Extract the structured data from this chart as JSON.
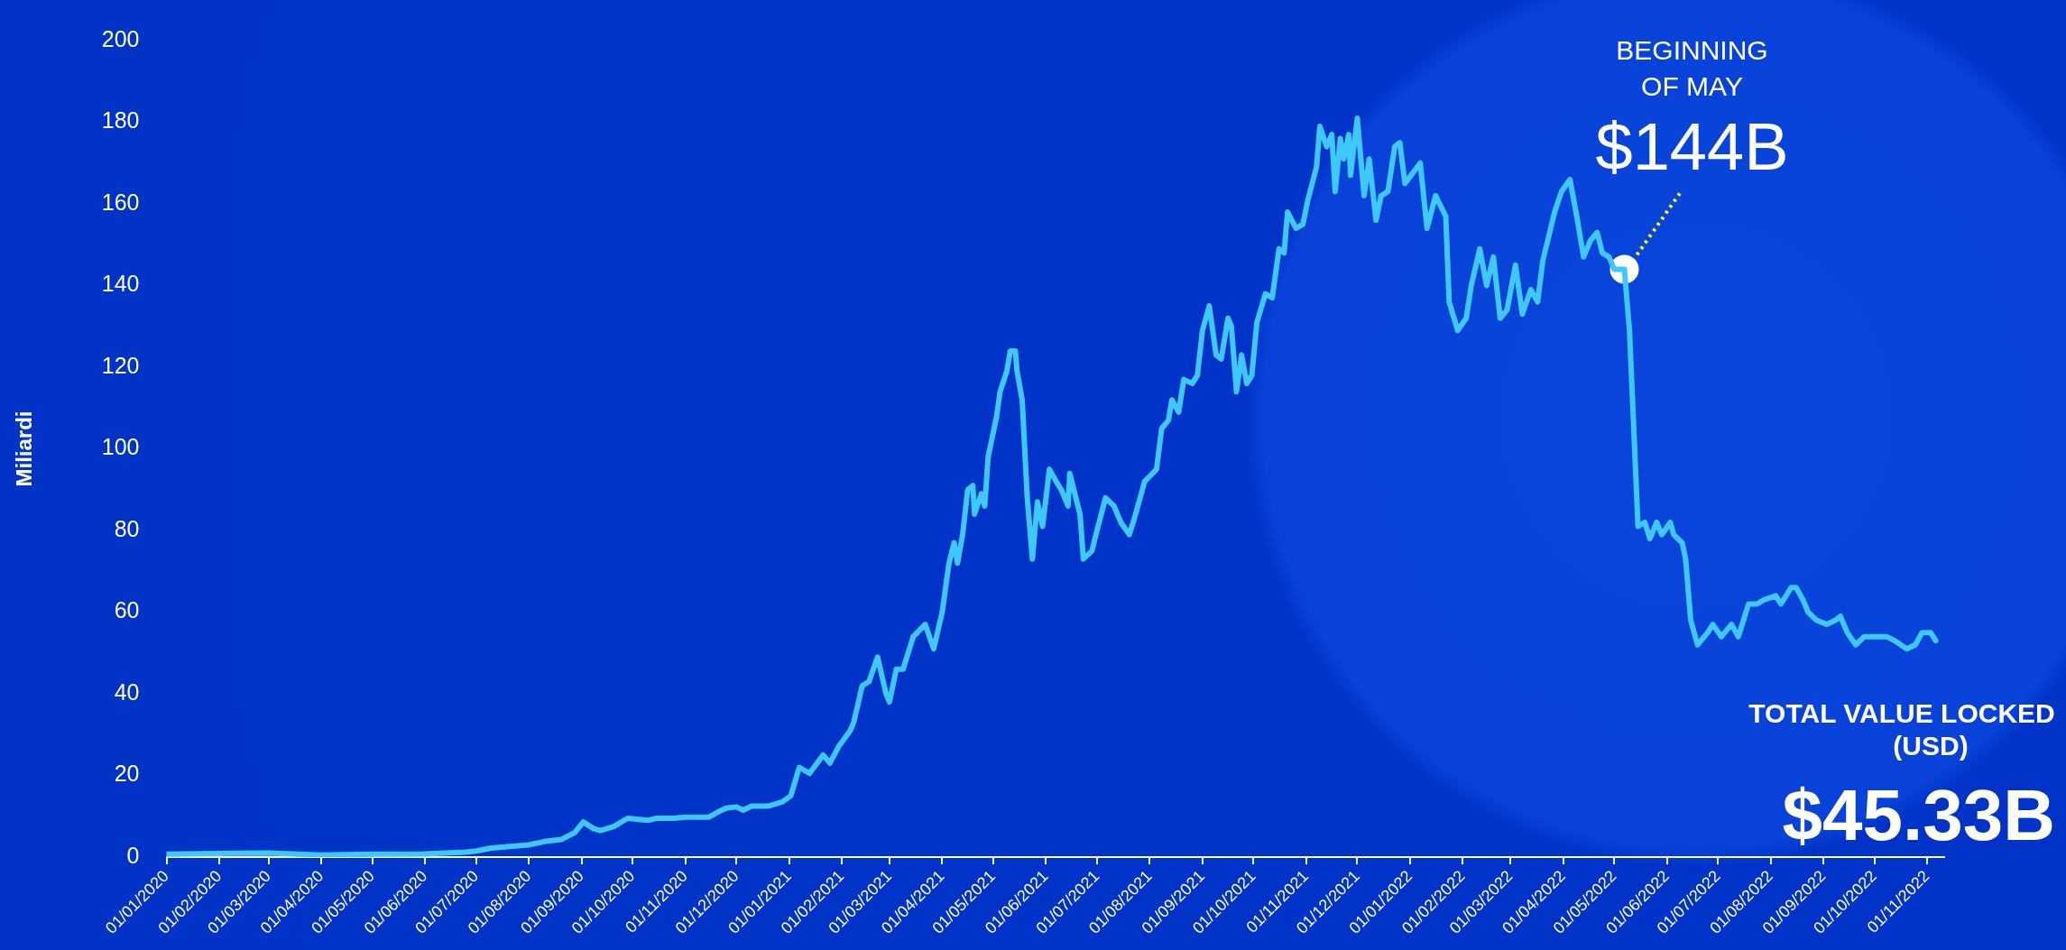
{
  "chart_data": {
    "type": "line",
    "ylabel": "Miliardi",
    "color": "#3ec8ff",
    "grid": false,
    "legend": false,
    "marker": "none",
    "line_style": "solid",
    "x": [
      "2020-01-01",
      "2020-02-01",
      "2020-03-01",
      "2020-03-15",
      "2020-04-01",
      "2020-05-01",
      "2020-06-01",
      "2020-06-25",
      "2020-07-01",
      "2020-07-10",
      "2020-08-01",
      "2020-08-10",
      "2020-08-20",
      "2020-08-28",
      "2020-09-02",
      "2020-09-08",
      "2020-09-12",
      "2020-09-20",
      "2020-09-28",
      "2020-10-10",
      "2020-10-15",
      "2020-10-25",
      "2020-11-01",
      "2020-11-15",
      "2020-11-20",
      "2020-11-25",
      "2020-12-01",
      "2020-12-05",
      "2020-12-10",
      "2020-12-20",
      "2020-12-28",
      "2021-01-02",
      "2021-01-07",
      "2021-01-13",
      "2021-01-21",
      "2021-01-25",
      "2021-01-30",
      "2021-02-06",
      "2021-02-08",
      "2021-02-13",
      "2021-02-17",
      "2021-02-22",
      "2021-02-27",
      "2021-03-01",
      "2021-03-05",
      "2021-03-09",
      "2021-03-15",
      "2021-03-22",
      "2021-03-27",
      "2021-04-01",
      "2021-04-05",
      "2021-04-08",
      "2021-04-10",
      "2021-04-13",
      "2021-04-16",
      "2021-04-19",
      "2021-04-20",
      "2021-04-24",
      "2021-04-26",
      "2021-04-28",
      "2021-05-03",
      "2021-05-05",
      "2021-05-09",
      "2021-05-11",
      "2021-05-14",
      "2021-05-15",
      "2021-05-18",
      "2021-05-21",
      "2021-05-24",
      "2021-05-27",
      "2021-05-30",
      "2021-06-03",
      "2021-06-07",
      "2021-06-10",
      "2021-06-14",
      "2021-06-15",
      "2021-06-21",
      "2021-06-23",
      "2021-06-28",
      "2021-07-01",
      "2021-07-06",
      "2021-07-11",
      "2021-07-15",
      "2021-07-20",
      "2021-07-23",
      "2021-07-29",
      "2021-08-05",
      "2021-08-08",
      "2021-08-12",
      "2021-08-14",
      "2021-08-18",
      "2021-08-21",
      "2021-08-26",
      "2021-08-29",
      "2021-09-01",
      "2021-09-05",
      "2021-09-09",
      "2021-09-12",
      "2021-09-16",
      "2021-09-18",
      "2021-09-21",
      "2021-09-24",
      "2021-09-27",
      "2021-09-30",
      "2021-10-03",
      "2021-10-08",
      "2021-10-12",
      "2021-10-16",
      "2021-10-19",
      "2021-10-21",
      "2021-10-26",
      "2021-10-30",
      "2021-11-02",
      "2021-11-07",
      "2021-11-09",
      "2021-11-13",
      "2021-11-16",
      "2021-11-18",
      "2021-11-21",
      "2021-11-23",
      "2021-11-26",
      "2021-11-27",
      "2021-12-01",
      "2021-12-05",
      "2021-12-08",
      "2021-12-12",
      "2021-12-15",
      "2021-12-19",
      "2021-12-23",
      "2021-12-26",
      "2021-12-29",
      "2022-01-07",
      "2022-01-11",
      "2022-01-16",
      "2022-01-22",
      "2022-01-24",
      "2022-01-29",
      "2022-02-03",
      "2022-02-06",
      "2022-02-11",
      "2022-02-15",
      "2022-02-19",
      "2022-02-23",
      "2022-02-27",
      "2022-03-04",
      "2022-03-08",
      "2022-03-13",
      "2022-03-17",
      "2022-03-20",
      "2022-03-27",
      "2022-03-31",
      "2022-04-05",
      "2022-04-09",
      "2022-04-13",
      "2022-04-17",
      "2022-04-21",
      "2022-04-24",
      "2022-04-28",
      "2022-05-01",
      "2022-05-07",
      "2022-05-10",
      "2022-05-12",
      "2022-05-15",
      "2022-05-19",
      "2022-05-22",
      "2022-05-26",
      "2022-05-29",
      "2022-06-03",
      "2022-06-05",
      "2022-06-10",
      "2022-06-12",
      "2022-06-15",
      "2022-06-19",
      "2022-06-25",
      "2022-06-28",
      "2022-07-03",
      "2022-07-09",
      "2022-07-13",
      "2022-07-19",
      "2022-07-24",
      "2022-07-28",
      "2022-08-04",
      "2022-08-07",
      "2022-08-13",
      "2022-08-16",
      "2022-08-20",
      "2022-08-23",
      "2022-08-28",
      "2022-09-03",
      "2022-09-08",
      "2022-09-11",
      "2022-09-15",
      "2022-09-20",
      "2022-09-25",
      "2022-10-02",
      "2022-10-08",
      "2022-10-13",
      "2022-10-20",
      "2022-10-25",
      "2022-10-29",
      "2022-11-03",
      "2022-11-06"
    ],
    "values": [
      0.7,
      0.9,
      1.0,
      0.8,
      0.5,
      0.7,
      0.8,
      1.2,
      1.5,
      2.2,
      3,
      3.8,
      4.3,
      6,
      8.6,
      7,
      6.5,
      7.5,
      9.5,
      9,
      9.5,
      9.5,
      9.8,
      9.8,
      11,
      12,
      12.3,
      11.5,
      12.5,
      12.5,
      13.5,
      15,
      22,
      20.5,
      25,
      23,
      27,
      31,
      33,
      42,
      43,
      49,
      40,
      38,
      46,
      46,
      54,
      57,
      51,
      60,
      72,
      77,
      72,
      79,
      90,
      91,
      84,
      89,
      86,
      98,
      108,
      114,
      119,
      124,
      124,
      119,
      112,
      88,
      73,
      87,
      81,
      95,
      92,
      90,
      86,
      94,
      84,
      73,
      75,
      80,
      88,
      86,
      82,
      79,
      83,
      92,
      95,
      105,
      107,
      112,
      109,
      117,
      116,
      118,
      129,
      135,
      123,
      122,
      132,
      130,
      114,
      123,
      116,
      118,
      131,
      138,
      137,
      149,
      148,
      158,
      154,
      155,
      161,
      169,
      179,
      174,
      177,
      163,
      176,
      171,
      177,
      167,
      181,
      162,
      171,
      156,
      162,
      163,
      174,
      175,
      165,
      170,
      154,
      162,
      157,
      136,
      129,
      132,
      140,
      149,
      140,
      147,
      132,
      134,
      145,
      133,
      139,
      136,
      146,
      158,
      163,
      166,
      157,
      147,
      151,
      153,
      148,
      147,
      144,
      144,
      129,
      110,
      81,
      82,
      78,
      82,
      79,
      82,
      79,
      77,
      73,
      58,
      52,
      55,
      57,
      54,
      57,
      54,
      62,
      62,
      63,
      64,
      62,
      66,
      66,
      63,
      60,
      58,
      57,
      58,
      59,
      55,
      52,
      54,
      54,
      54,
      53,
      51,
      52,
      55,
      55,
      53
    ],
    "xlim": [
      "2020-01-01",
      "2022-11-11"
    ],
    "xticks": [
      {
        "value": "2020-01-01",
        "label": "01/01/2020"
      },
      {
        "value": "2020-02-01",
        "label": "01/02/2020"
      },
      {
        "value": "2020-03-01",
        "label": "01/03/2020"
      },
      {
        "value": "2020-04-01",
        "label": "01/04/2020"
      },
      {
        "value": "2020-05-01",
        "label": "01/05/2020"
      },
      {
        "value": "2020-06-01",
        "label": "01/06/2020"
      },
      {
        "value": "2020-07-01",
        "label": "01/07/2020"
      },
      {
        "value": "2020-08-01",
        "label": "01/08/2020"
      },
      {
        "value": "2020-09-01",
        "label": "01/09/2020"
      },
      {
        "value": "2020-10-01",
        "label": "01/10/2020"
      },
      {
        "value": "2020-11-01",
        "label": "01/11/2020"
      },
      {
        "value": "2020-12-01",
        "label": "01/12/2020"
      },
      {
        "value": "2021-01-01",
        "label": "01/01/2021"
      },
      {
        "value": "2021-02-01",
        "label": "01/02/2021"
      },
      {
        "value": "2021-03-01",
        "label": "01/03/2021"
      },
      {
        "value": "2021-04-01",
        "label": "01/04/2021"
      },
      {
        "value": "2021-05-01",
        "label": "01/05/2021"
      },
      {
        "value": "2021-06-01",
        "label": "01/06/2021"
      },
      {
        "value": "2021-07-01",
        "label": "01/07/2021"
      },
      {
        "value": "2021-08-01",
        "label": "01/08/2021"
      },
      {
        "value": "2021-09-01",
        "label": "01/09/2021"
      },
      {
        "value": "2021-10-01",
        "label": "01/10/2021"
      },
      {
        "value": "2021-11-01",
        "label": "01/11/2021"
      },
      {
        "value": "2021-12-01",
        "label": "01/12/2021"
      },
      {
        "value": "2022-01-01",
        "label": "01/01/2022"
      },
      {
        "value": "2022-02-01",
        "label": "01/02/2022"
      },
      {
        "value": "2022-03-01",
        "label": "01/03/2022"
      },
      {
        "value": "2022-04-01",
        "label": "01/04/2022"
      },
      {
        "value": "2022-05-01",
        "label": "01/05/2022"
      },
      {
        "value": "2022-06-01",
        "label": "01/06/2022"
      },
      {
        "value": "2022-07-01",
        "label": "01/07/2022"
      },
      {
        "value": "2022-08-01",
        "label": "01/08/2022"
      },
      {
        "value": "2022-09-01",
        "label": "01/09/2022"
      },
      {
        "value": "2022-10-01",
        "label": "01/10/2022"
      },
      {
        "value": "2022-11-01",
        "label": "01/11/2022"
      }
    ],
    "ylim": [
      0,
      200
    ],
    "yticks": [
      0,
      20,
      40,
      60,
      80,
      100,
      120,
      140,
      160,
      180,
      200
    ],
    "annotations": [
      "BEGINNING OF MAY",
      {
        "text": "$144B",
        "x": "2022-05-07",
        "y": 144
      },
      "TOTAL VALUE LOCKED (USD)",
      "$45.33B"
    ]
  }
}
